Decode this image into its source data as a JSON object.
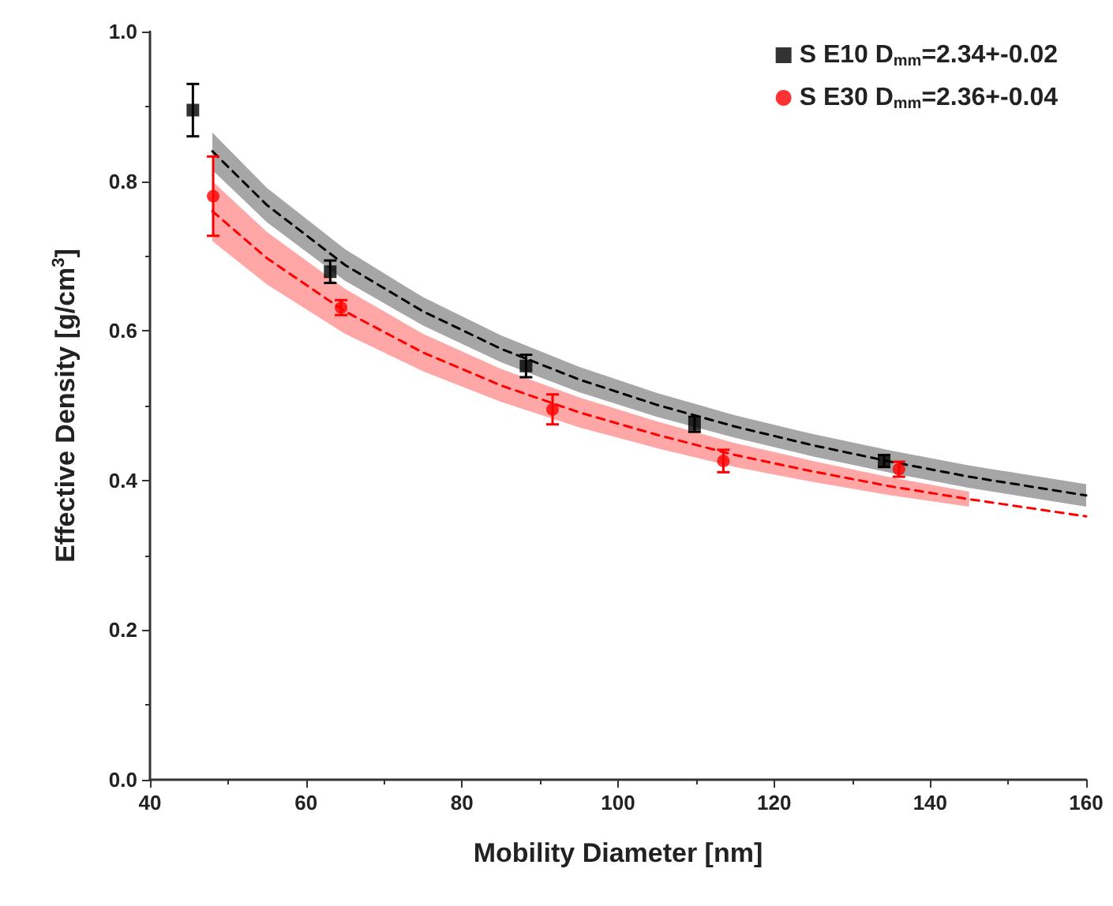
{
  "chart_data": {
    "type": "scatter",
    "xlabel": "Mobility Diameter [nm]",
    "ylabel": "Effective Density [g/cm$^{3}$]",
    "xlim": [
      40,
      160
    ],
    "ylim": [
      0,
      1
    ],
    "xticks": [
      40,
      60,
      80,
      100,
      120,
      140,
      160
    ],
    "yticks": [
      {
        "value": 0,
        "label": "0.0"
      },
      {
        "value": 0.2,
        "label": "0.2"
      },
      {
        "value": 0.4,
        "label": "0.4"
      },
      {
        "value": 0.6,
        "label": "0.6"
      },
      {
        "value": 0.8,
        "label": "0.8"
      },
      {
        "value": 1,
        "label": "1.0"
      }
    ],
    "grid": false,
    "legend": "top right",
    "series": [
      {
        "name": "S E10 D$_{mm}$=2.34+-0.02",
        "color": "#000000",
        "marker": "square",
        "x": [
          45.5,
          63.1,
          88.2,
          109.8,
          134.1
        ],
        "values": [
          0.895,
          0.679,
          0.553,
          0.475,
          0.426
        ],
        "errors": [
          0.035,
          0.015,
          0.015,
          0.01,
          0.008
        ]
      },
      {
        "name": "S E30 D$_{mm}$=2.36+-0.04",
        "color": "#ff0000",
        "marker": "circle",
        "x": [
          48.1,
          64.5,
          91.6,
          113.5,
          136
        ],
        "values": [
          0.78,
          0.631,
          0.495,
          0.426,
          0.415
        ],
        "errors": [
          0.053,
          0.01,
          0.02,
          0.015,
          0.01
        ]
      },
      {
        "type": "line",
        "color": "#000000",
        "line_style": "dashed",
        "x": [
          48,
          55,
          65,
          75,
          85,
          95,
          105,
          115,
          125,
          135,
          145,
          160
        ],
        "values": [
          0.84,
          0.768,
          0.688,
          0.626,
          0.576,
          0.535,
          0.501,
          0.472,
          0.447,
          0.425,
          0.405,
          0.38
        ],
        "lower": [
          0.815,
          0.745,
          0.667,
          0.607,
          0.558,
          0.518,
          0.485,
          0.457,
          0.432,
          0.41,
          0.39,
          0.365
        ],
        "upper": [
          0.865,
          0.791,
          0.709,
          0.645,
          0.594,
          0.552,
          0.517,
          0.487,
          0.462,
          0.44,
          0.42,
          0.395
        ]
      },
      {
        "type": "line",
        "color": "#ff0000",
        "line_style": "dashed",
        "x": [
          48,
          55,
          65,
          75,
          85,
          95,
          105,
          115,
          125,
          135,
          145,
          160
        ],
        "values": [
          0.76,
          0.697,
          0.626,
          0.571,
          0.527,
          0.491,
          0.461,
          0.434,
          0.412,
          0.392,
          0.375,
          0.352
        ],
        "lower": [
          0.72,
          0.662,
          0.596,
          0.546,
          0.505,
          0.471,
          0.443,
          0.418,
          0.398,
          0.38,
          0.365,
          null
        ],
        "upper": [
          0.8,
          0.732,
          0.656,
          0.596,
          0.549,
          0.511,
          0.479,
          0.45,
          0.426,
          0.404,
          0.385,
          null
        ]
      }
    ]
  }
}
